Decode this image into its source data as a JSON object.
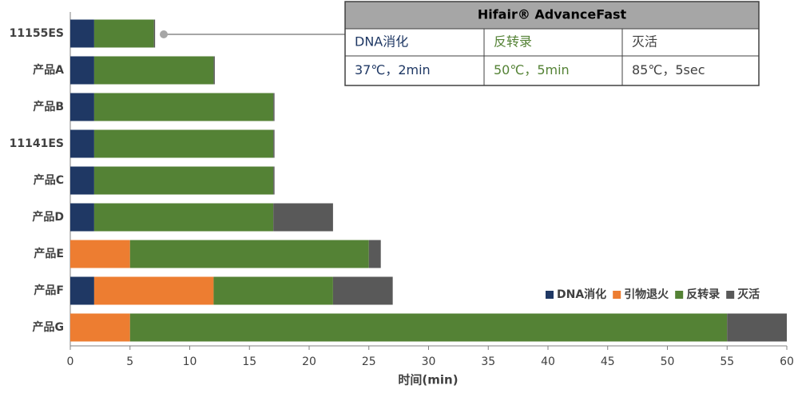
{
  "chart_data": {
    "type": "stacked-barh",
    "categories": [
      "11155ES",
      "产品A",
      "产品B",
      "11141ES",
      "产品C",
      "产品D",
      "产品E",
      "产品F",
      "产品G"
    ],
    "series": [
      {
        "name": "DNA消化",
        "color": "#1f3864",
        "values": [
          2,
          2,
          2,
          2,
          2,
          2,
          0,
          2,
          0
        ]
      },
      {
        "name": "引物退火",
        "color": "#ed7d31",
        "values": [
          0,
          0,
          0,
          0,
          0,
          0,
          5,
          10,
          5
        ]
      },
      {
        "name": "反转录",
        "color": "#548235",
        "values": [
          5,
          10,
          15,
          15,
          15,
          15,
          20,
          10,
          50
        ]
      },
      {
        "name": "灭活",
        "color": "#595959",
        "values": [
          0.1,
          0.1,
          0.1,
          0.1,
          0.1,
          5,
          1,
          5,
          5
        ]
      }
    ],
    "xlabel": "时间(min)",
    "xlim": [
      0,
      60
    ],
    "xticks": [
      0,
      5,
      10,
      15,
      20,
      25,
      30,
      35,
      40,
      45,
      50,
      55,
      60
    ],
    "legend": "lower right",
    "annotation": {
      "title": "Hifair® AdvanceFast",
      "columns": [
        "DNA消化",
        "反转录",
        "灭活"
      ],
      "rows": [
        [
          "37℃，2min",
          "50℃，5min",
          "85℃，5sec"
        ]
      ],
      "colors": [
        "#1f3864",
        "#548235",
        "#404040"
      ]
    }
  }
}
